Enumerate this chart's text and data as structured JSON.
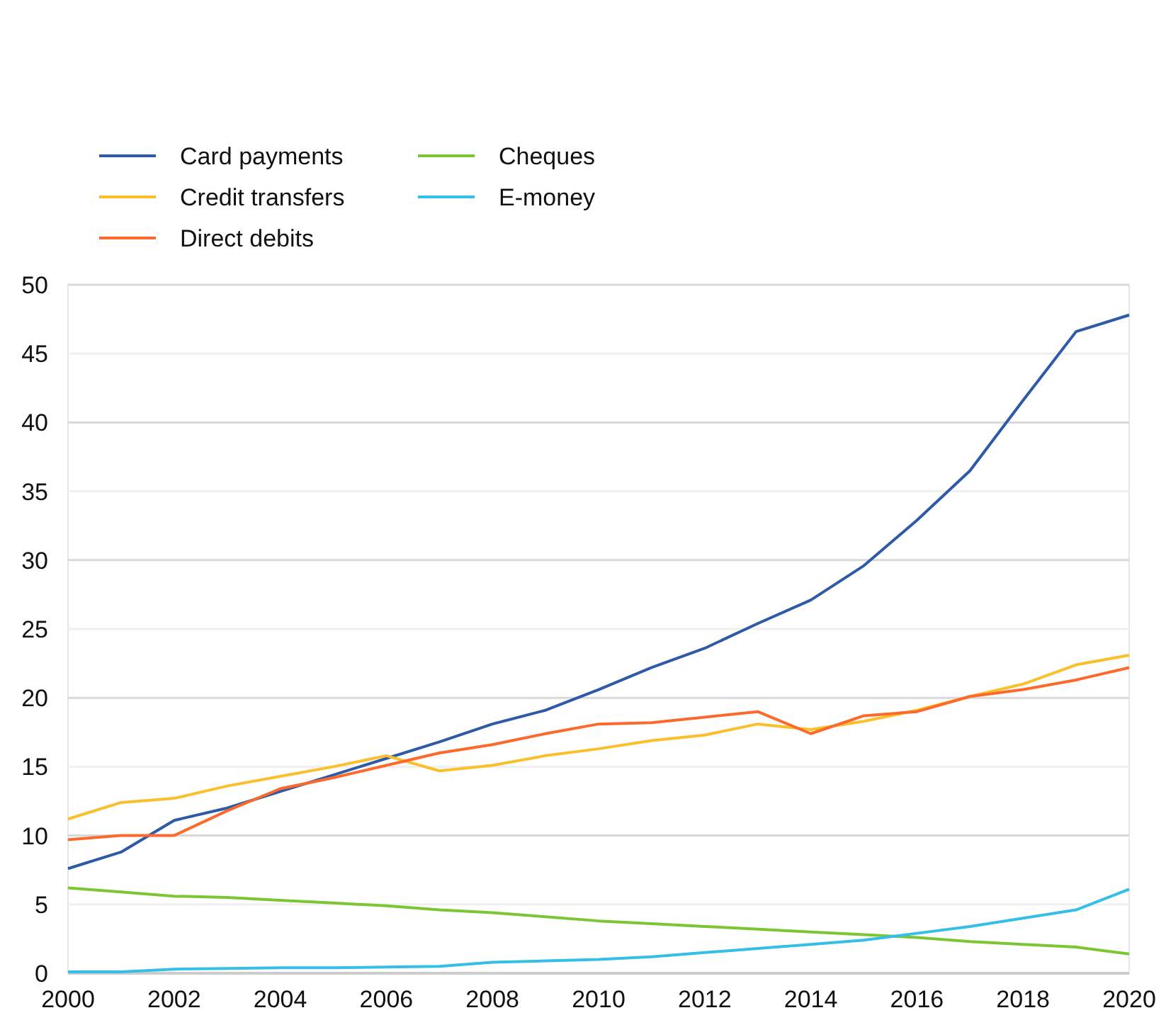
{
  "chart_data": {
    "type": "line",
    "x": [
      2000,
      2001,
      2002,
      2003,
      2004,
      2005,
      2006,
      2007,
      2008,
      2009,
      2010,
      2011,
      2012,
      2013,
      2014,
      2015,
      2016,
      2017,
      2018,
      2019,
      2020
    ],
    "series": [
      {
        "name": "Card payments",
        "color": "#2e5aa8",
        "values": [
          7.6,
          8.8,
          11.1,
          12.0,
          13.2,
          14.4,
          15.6,
          16.8,
          18.1,
          19.1,
          20.6,
          22.2,
          23.6,
          25.4,
          27.1,
          29.6,
          32.9,
          36.5,
          41.6,
          46.6,
          47.8
        ]
      },
      {
        "name": "Credit transfers",
        "color": "#fbbf2b",
        "values": [
          11.2,
          12.4,
          12.7,
          13.6,
          14.3,
          15.0,
          15.8,
          14.7,
          15.1,
          15.8,
          16.3,
          16.9,
          17.3,
          18.1,
          17.7,
          18.3,
          19.1,
          20.1,
          21.0,
          22.4,
          23.1
        ]
      },
      {
        "name": "Direct debits",
        "color": "#fb6a2c",
        "values": [
          9.7,
          10.0,
          10.0,
          11.8,
          13.4,
          14.2,
          15.1,
          16.0,
          16.6,
          17.4,
          18.1,
          18.2,
          18.6,
          19.0,
          17.4,
          18.7,
          19.0,
          20.1,
          20.6,
          21.3,
          22.2
        ]
      },
      {
        "name": "Cheques",
        "color": "#7cc634",
        "values": [
          6.2,
          5.9,
          5.6,
          5.5,
          5.3,
          5.1,
          4.9,
          4.6,
          4.4,
          4.1,
          3.8,
          3.6,
          3.4,
          3.2,
          3.0,
          2.8,
          2.6,
          2.3,
          2.1,
          1.9,
          1.4
        ]
      },
      {
        "name": "E-money",
        "color": "#35bfe8",
        "values": [
          0.1,
          0.1,
          0.3,
          0.35,
          0.4,
          0.4,
          0.45,
          0.5,
          0.8,
          0.9,
          1.0,
          1.2,
          1.5,
          1.8,
          2.1,
          2.4,
          2.9,
          3.4,
          4.0,
          4.6,
          6.1
        ]
      }
    ],
    "xlim": [
      2000,
      2020
    ],
    "xticks": [
      2000,
      2002,
      2004,
      2006,
      2008,
      2010,
      2012,
      2014,
      2016,
      2018,
      2020
    ],
    "ylim": [
      0,
      50
    ],
    "yticks": [
      0,
      5,
      10,
      15,
      20,
      25,
      30,
      35,
      40,
      45,
      50
    ],
    "grid": "y",
    "legend": "top left",
    "marker": "none",
    "line_style": "solid"
  }
}
